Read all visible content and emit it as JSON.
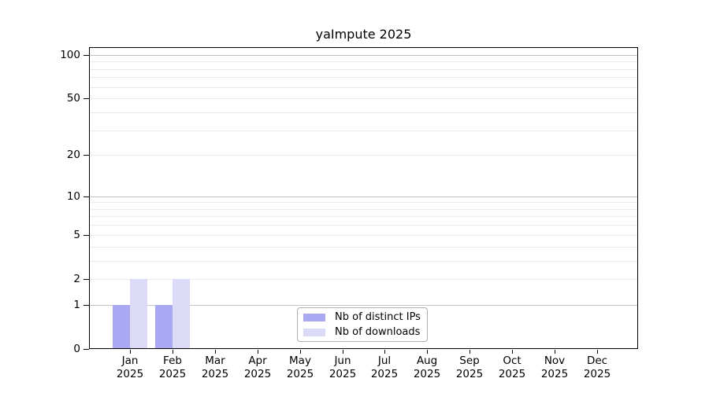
{
  "chart_data": {
    "type": "bar",
    "title": "yaImpute 2025",
    "x_tick_year": "2025",
    "categories": [
      "Jan",
      "Feb",
      "Mar",
      "Apr",
      "May",
      "Jun",
      "Jul",
      "Aug",
      "Sep",
      "Oct",
      "Nov",
      "Dec"
    ],
    "series": [
      {
        "name": "Nb of distinct IPs",
        "color": "#a8a8f3",
        "values": [
          1,
          1,
          0,
          0,
          0,
          0,
          0,
          0,
          0,
          0,
          0,
          0
        ]
      },
      {
        "name": "Nb of downloads",
        "color": "#dbdbf8",
        "values": [
          2,
          2,
          0,
          0,
          0,
          0,
          0,
          0,
          0,
          0,
          0,
          0
        ]
      }
    ],
    "y_scale": "log1p",
    "y_ticks": [
      0,
      1,
      2,
      5,
      10,
      20,
      50,
      100
    ],
    "y_major_gridlines": [
      1,
      10,
      100
    ],
    "y_minor_gridlines": [
      2,
      3,
      4,
      5,
      6,
      7,
      8,
      9,
      20,
      30,
      40,
      50,
      60,
      70,
      80,
      90
    ],
    "y_max": 113,
    "grid": "horizontal",
    "legend_position": "bottom-center",
    "xlabel": "",
    "ylabel": ""
  },
  "colors": {
    "background": "#ffffff",
    "axis": "#000000",
    "major_grid": "#c2c2c2",
    "minor_grid": "#eaeaea",
    "legend_border": "#b0b0b0",
    "bar_distinct_ips": "#a8a8f3",
    "bar_downloads": "#dbdbf8"
  }
}
